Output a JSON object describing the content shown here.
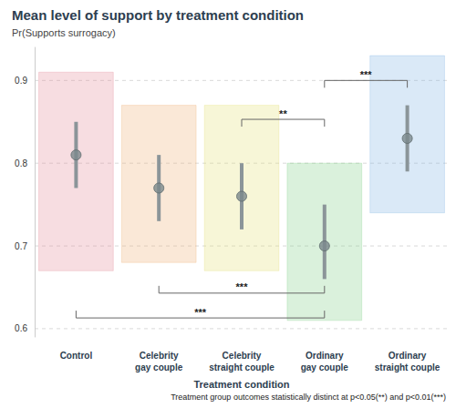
{
  "chart_data": {
    "type": "scatter",
    "title": "Mean level of support by treatment condition",
    "subtitle": "Pr(Supports surrogacy)",
    "x_label": "Treatment condition",
    "note": "Treatment group outcomes statistically distinct at p<0.05(**) and p<0.01(***)",
    "categories": [
      "Control",
      "Celebrity gay couple",
      "Celebrity straight couple",
      "Ordinary gay couple",
      "Ordinary straight couple"
    ],
    "colors": [
      "#e58f9c",
      "#eeb27a",
      "#e4e07a",
      "#86d08a",
      "#86b6e6"
    ],
    "values": [
      0.81,
      0.77,
      0.76,
      0.7,
      0.83
    ],
    "error_low": [
      0.77,
      0.73,
      0.72,
      0.66,
      0.79
    ],
    "error_high": [
      0.85,
      0.81,
      0.8,
      0.75,
      0.87
    ],
    "point_min": [
      0.67,
      0.68,
      0.67,
      0.61,
      0.74
    ],
    "point_max": [
      0.91,
      0.87,
      0.87,
      0.8,
      0.93
    ],
    "ylim": [
      0.59,
      0.94
    ],
    "yticks": [
      0.6,
      0.7,
      0.8,
      0.9
    ],
    "grid": true,
    "brackets": [
      {
        "from": "Ordinary gay couple",
        "to": "Ordinary straight couple",
        "y": 0.9,
        "label": "***"
      },
      {
        "from": "Celebrity straight couple",
        "to": "Ordinary gay couple",
        "y": 0.853,
        "label": "**"
      },
      {
        "from": "Celebrity gay couple",
        "to": "Ordinary gay couple",
        "y": 0.643,
        "label": "***"
      },
      {
        "from": "Control",
        "to": "Ordinary gay couple",
        "y": 0.613,
        "label": "***"
      }
    ]
  }
}
